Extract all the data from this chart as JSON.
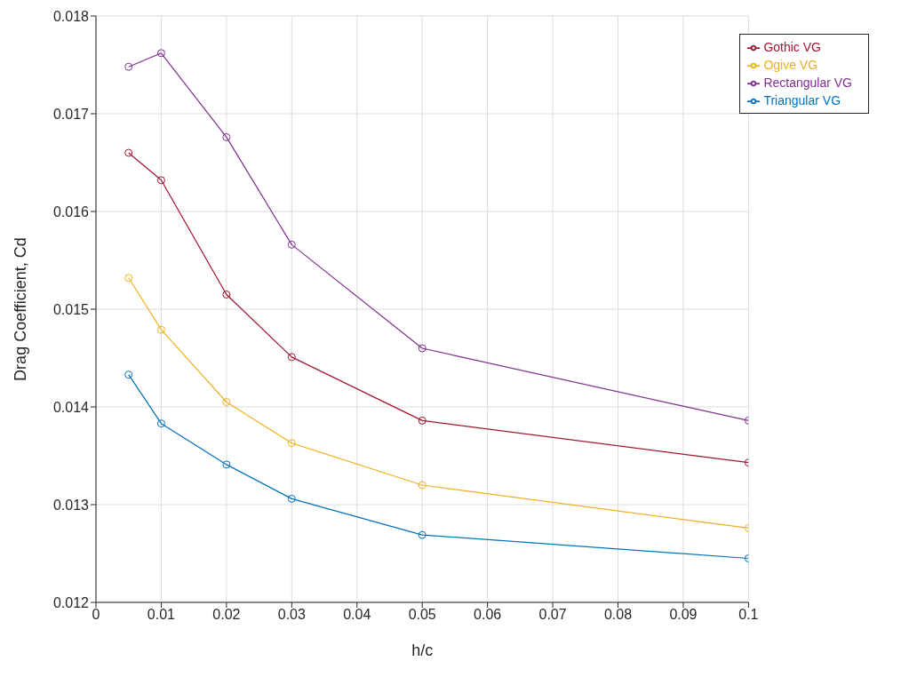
{
  "chart_data": {
    "type": "line",
    "xlabel": "h/c",
    "ylabel": "Drag Coefficient, Cd",
    "x": [
      0.005,
      0.01,
      0.02,
      0.03,
      0.05,
      0.1
    ],
    "series": [
      {
        "name": "Triangular VG",
        "color": "#0072bd",
        "values": [
          0.01433,
          0.01383,
          0.01341,
          0.01306,
          0.01269,
          0.01245
        ]
      },
      {
        "name": "Gothic VG",
        "color": "#a2142f",
        "values": [
          0.0166,
          0.01632,
          0.01515,
          0.01451,
          0.01386,
          0.01343
        ]
      },
      {
        "name": "Ogive VG",
        "color": "#edb120",
        "values": [
          0.01532,
          0.01479,
          0.01405,
          0.01363,
          0.0132,
          0.01276
        ]
      },
      {
        "name": "Rectangular VG",
        "color": "#7e2f8e",
        "values": [
          0.01748,
          0.01762,
          0.01676,
          0.01566,
          0.0146,
          0.01386
        ]
      }
    ],
    "xlim": [
      0,
      0.1
    ],
    "xticks": [
      0,
      0.01,
      0.02,
      0.03,
      0.04,
      0.05,
      0.06,
      0.07,
      0.08,
      0.09,
      0.1
    ],
    "ylim": [
      0.012,
      0.018
    ],
    "yticks": [
      0.012,
      0.013,
      0.014,
      0.015,
      0.016,
      0.017,
      0.018
    ],
    "grid": true,
    "legend": "top right",
    "marker": "circle",
    "line_style": "solid"
  }
}
